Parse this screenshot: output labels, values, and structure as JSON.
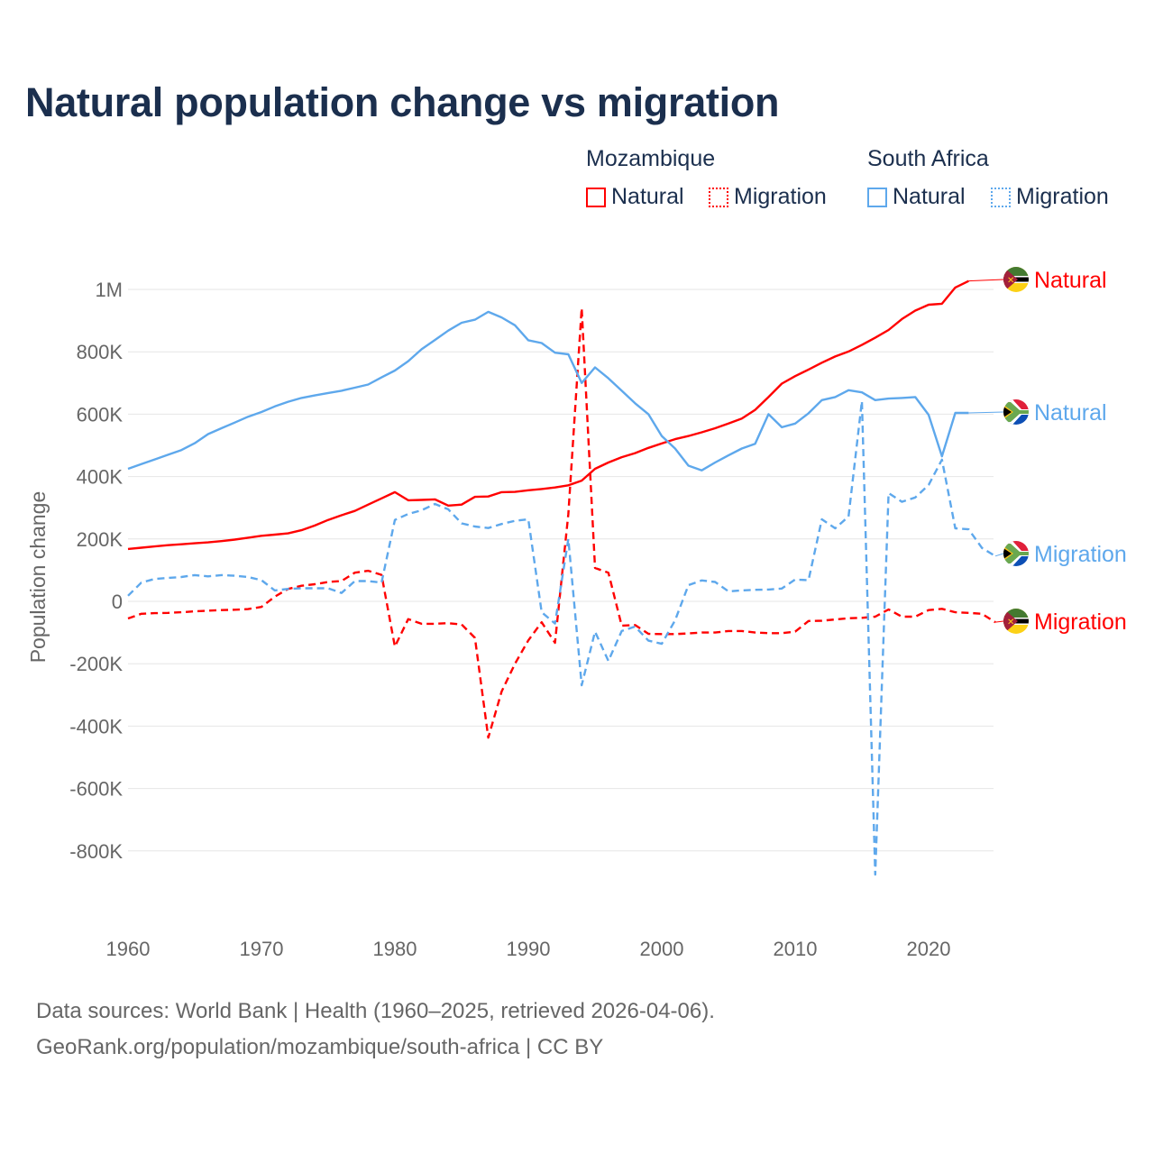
{
  "title": "Natural population change vs migration",
  "legend": {
    "groups": [
      {
        "name": "Mozambique",
        "items": [
          {
            "label": "Natural",
            "style": "solid"
          },
          {
            "label": "Migration",
            "style": "dotted"
          }
        ],
        "color": "#ff0000"
      },
      {
        "name": "South Africa",
        "items": [
          {
            "label": "Natural",
            "style": "solid"
          },
          {
            "label": "Migration",
            "style": "dotted"
          }
        ],
        "color": "#5ea8ec"
      }
    ]
  },
  "footer": {
    "line1": "Data sources: World Bank | Health (1960–2025, retrieved 2026-04-06).",
    "line2": "GeoRank.org/population/mozambique/south-africa | CC BY"
  },
  "chart_data": {
    "type": "line",
    "title": "Natural population change vs migration",
    "xlabel": "",
    "ylabel": "Population change",
    "xlim": [
      1960,
      2025
    ],
    "ylim": [
      -1000000,
      1000000
    ],
    "x_ticks": [
      1960,
      1970,
      1980,
      1990,
      2000,
      2010,
      2020
    ],
    "x_tick_labels": [
      "1960",
      "1970",
      "1980",
      "1990",
      "2000",
      "2010",
      "2020"
    ],
    "y_ticks": [
      -800000,
      -600000,
      -400000,
      -200000,
      0,
      200000,
      400000,
      600000,
      800000,
      1000000
    ],
    "y_tick_labels": [
      "-800K",
      "-600K",
      "-400K",
      "-200K",
      "0",
      "200K",
      "400K",
      "600K",
      "800K",
      "1M"
    ],
    "grid": true,
    "start_year": 1960,
    "series": [
      {
        "name": "Mozambique Natural",
        "label": "Natural",
        "country": "Mozambique",
        "color": "#ff0000",
        "dash": false,
        "values": [
          168000,
          172000,
          176000,
          180000,
          183000,
          186000,
          189000,
          193000,
          198000,
          204000,
          210000,
          214000,
          218000,
          228000,
          243000,
          261000,
          276000,
          290000,
          310000,
          330000,
          350000,
          324000,
          325000,
          327000,
          307000,
          310000,
          335000,
          336000,
          350000,
          351000,
          356000,
          360000,
          365000,
          372000,
          387000,
          425000,
          445000,
          462000,
          475000,
          492000,
          506000,
          520000,
          530000,
          542000,
          555000,
          570000,
          586000,
          614000,
          655000,
          698000,
          722000,
          743000,
          765000,
          785000,
          801000,
          822000,
          845000,
          870000,
          905000,
          932000,
          951000,
          954000,
          1006000,
          1027000
        ]
      },
      {
        "name": "Mozambique Migration",
        "label": "Migration",
        "country": "Mozambique",
        "color": "#ff0000",
        "dash": true,
        "values": [
          -55000,
          -40000,
          -38000,
          -37000,
          -35000,
          -32000,
          -30000,
          -28000,
          -27000,
          -25000,
          -18000,
          15000,
          40000,
          50000,
          55000,
          62000,
          65000,
          92000,
          98000,
          85000,
          -145000,
          -57000,
          -72000,
          -72000,
          -70000,
          -74000,
          -117000,
          -437000,
          -289000,
          -200000,
          -125000,
          -67000,
          -133000,
          280000,
          940000,
          107000,
          92000,
          -78000,
          -76000,
          -104000,
          -105000,
          -105000,
          -103000,
          -100000,
          -100000,
          -95000,
          -95000,
          -100000,
          -102000,
          -102000,
          -97000,
          -63000,
          -62000,
          -58000,
          -54000,
          -53000,
          -49000,
          -26000,
          -49000,
          -49000,
          -28000,
          -24000,
          -35000,
          -37000,
          -40000,
          -67000
        ]
      },
      {
        "name": "South Africa Natural",
        "label": "Natural",
        "country": "South Africa",
        "color": "#5ea8ec",
        "dash": false,
        "values": [
          425000,
          440000,
          455000,
          470000,
          485000,
          507000,
          536000,
          555000,
          573000,
          592000,
          607000,
          625000,
          640000,
          652000,
          660000,
          668000,
          675000,
          685000,
          695000,
          718000,
          740000,
          770000,
          808000,
          838000,
          868000,
          893000,
          903000,
          928000,
          910000,
          885000,
          837000,
          828000,
          797000,
          792000,
          700000,
          750000,
          715000,
          675000,
          635000,
          600000,
          530000,
          490000,
          435000,
          420000,
          445000,
          468000,
          490000,
          505000,
          600000,
          558000,
          570000,
          603000,
          645000,
          655000,
          677000,
          670000,
          645000,
          650000,
          652000,
          655000,
          598000,
          465000,
          604000,
          604000
        ]
      },
      {
        "name": "South Africa Migration",
        "label": "Migration",
        "country": "South Africa",
        "color": "#5ea8ec",
        "dash": true,
        "values": [
          18000,
          60000,
          72000,
          75000,
          78000,
          84000,
          80000,
          84000,
          82000,
          78000,
          68000,
          35000,
          40000,
          42000,
          42000,
          42000,
          27000,
          65000,
          65000,
          60000,
          261000,
          280000,
          292000,
          312000,
          295000,
          250000,
          240000,
          235000,
          248000,
          258000,
          263000,
          -35000,
          -71000,
          200000,
          -269000,
          -97000,
          -191000,
          -95000,
          -81000,
          -126000,
          -136000,
          -61000,
          52000,
          67000,
          62000,
          32000,
          35000,
          37000,
          38000,
          41000,
          70000,
          68000,
          263000,
          234000,
          272000,
          642000,
          -876000,
          347000,
          319000,
          333000,
          373000,
          454000,
          234000,
          231000,
          171000,
          145000
        ]
      }
    ]
  }
}
